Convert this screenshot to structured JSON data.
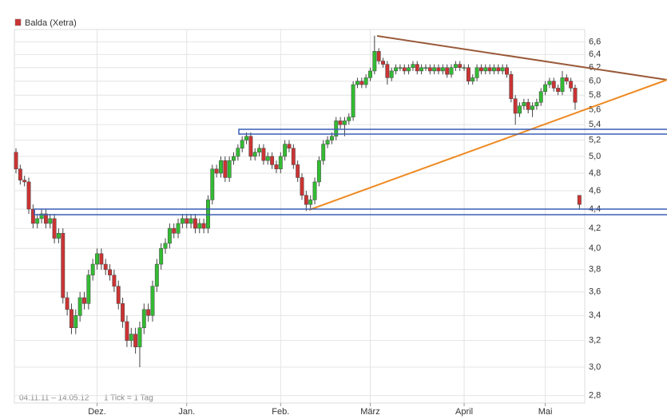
{
  "chart_data": {
    "type": "candlestick",
    "series": [
      {
        "name": "Balda (Xetra)",
        "color": "#cc3333",
        "up_color": "#33bb33",
        "down_color": "#cc3333",
        "open": [
          5.05,
          4.85,
          4.72,
          4.7,
          4.4,
          4.25,
          4.3,
          4.35,
          4.25,
          4.3,
          4.1,
          4.15,
          3.55,
          3.45,
          3.3,
          3.4,
          3.55,
          3.5,
          3.75,
          3.85,
          3.95,
          3.85,
          3.8,
          3.75,
          3.65,
          3.5,
          3.35,
          3.2,
          3.25,
          3.15,
          3.3,
          3.45,
          3.4,
          3.65,
          3.85,
          4.0,
          4.05,
          4.2,
          4.15,
          4.25,
          4.3,
          4.25,
          4.3,
          4.2,
          4.25,
          4.2,
          4.5,
          4.85,
          4.8,
          4.95,
          4.75,
          4.95,
          5.0,
          5.1,
          5.2,
          5.25,
          5.0,
          5.05,
          5.1,
          4.95,
          5.0,
          4.9,
          4.85,
          5.0,
          5.15,
          5.1,
          4.9,
          4.75,
          4.55,
          4.45,
          4.5,
          4.7,
          4.95,
          5.15,
          5.2,
          5.25,
          5.45,
          5.4,
          5.45,
          5.5,
          5.95,
          6.0,
          5.95,
          6.05,
          6.15,
          6.45,
          6.3,
          6.25,
          6.05,
          6.15,
          6.2,
          6.2,
          6.15,
          6.2,
          6.25,
          6.15,
          6.2,
          6.2,
          6.15,
          6.2,
          6.15,
          6.2,
          6.1,
          6.2,
          6.25,
          6.2,
          6.2,
          6.0,
          6.05,
          6.2,
          6.15,
          6.2,
          6.15,
          6.2,
          6.15,
          6.2,
          6.1,
          5.75,
          5.55,
          5.65,
          5.7,
          5.6,
          5.65,
          5.7,
          5.85,
          5.95,
          6.0,
          5.9,
          5.85,
          6.05,
          6.0,
          5.9,
          4.55
        ],
        "high": [
          5.1,
          4.9,
          4.77,
          4.75,
          4.45,
          4.35,
          4.4,
          4.4,
          4.35,
          4.35,
          4.2,
          4.2,
          3.6,
          3.5,
          3.45,
          3.6,
          3.6,
          3.8,
          3.9,
          4.0,
          4.0,
          3.9,
          3.85,
          3.8,
          3.7,
          3.55,
          3.4,
          3.3,
          3.3,
          3.35,
          3.5,
          3.5,
          3.7,
          3.9,
          4.05,
          4.1,
          4.25,
          4.25,
          4.3,
          4.35,
          4.35,
          4.35,
          4.35,
          4.3,
          4.3,
          4.55,
          4.9,
          4.9,
          5.0,
          5.0,
          5.0,
          5.05,
          5.15,
          5.25,
          5.3,
          5.3,
          5.1,
          5.15,
          5.15,
          5.05,
          5.05,
          4.95,
          5.05,
          5.2,
          5.2,
          5.15,
          4.95,
          4.8,
          4.6,
          4.55,
          4.75,
          5.0,
          5.2,
          5.25,
          5.3,
          5.5,
          5.5,
          5.5,
          5.55,
          6.0,
          6.05,
          6.05,
          6.1,
          6.2,
          6.7,
          6.5,
          6.35,
          6.3,
          6.2,
          6.25,
          6.25,
          6.25,
          6.25,
          6.3,
          6.3,
          6.25,
          6.25,
          6.25,
          6.25,
          6.25,
          6.25,
          6.25,
          6.25,
          6.3,
          6.3,
          6.25,
          6.25,
          6.1,
          6.25,
          6.25,
          6.25,
          6.25,
          6.25,
          6.25,
          6.25,
          6.25,
          6.15,
          5.8,
          5.7,
          5.75,
          5.75,
          5.7,
          5.75,
          5.9,
          6.0,
          6.05,
          6.05,
          5.95,
          6.15,
          6.1,
          6.05,
          5.95,
          4.55
        ],
        "low": [
          4.8,
          4.67,
          4.65,
          4.35,
          4.2,
          4.2,
          4.25,
          4.2,
          4.2,
          4.05,
          4.05,
          3.5,
          3.4,
          3.25,
          3.25,
          3.35,
          3.45,
          3.45,
          3.7,
          3.8,
          3.8,
          3.75,
          3.7,
          3.6,
          3.45,
          3.3,
          3.15,
          3.15,
          3.1,
          3.0,
          3.25,
          3.35,
          3.35,
          3.6,
          3.8,
          3.95,
          4.0,
          4.1,
          4.1,
          4.2,
          4.2,
          4.2,
          4.15,
          4.15,
          4.15,
          4.15,
          4.45,
          4.75,
          4.75,
          4.7,
          4.7,
          4.9,
          4.95,
          5.05,
          5.15,
          4.95,
          4.95,
          5.0,
          4.9,
          4.9,
          4.85,
          4.8,
          4.8,
          4.95,
          5.05,
          4.85,
          4.7,
          4.5,
          4.38,
          4.4,
          4.45,
          4.65,
          4.9,
          5.1,
          5.15,
          5.2,
          5.35,
          5.25,
          5.4,
          5.45,
          5.9,
          5.9,
          5.9,
          6.0,
          6.1,
          6.25,
          6.2,
          5.95,
          6.0,
          6.1,
          6.15,
          6.1,
          6.1,
          6.15,
          6.1,
          6.1,
          6.15,
          6.1,
          6.1,
          6.1,
          6.1,
          6.05,
          6.05,
          6.15,
          6.15,
          6.15,
          5.95,
          5.95,
          6.0,
          6.1,
          6.1,
          6.1,
          6.1,
          6.1,
          6.1,
          6.05,
          5.7,
          5.4,
          5.5,
          5.6,
          5.55,
          5.5,
          5.6,
          5.65,
          5.8,
          5.9,
          5.85,
          5.8,
          5.8,
          5.95,
          5.85,
          5.6,
          4.4
        ],
        "close": [
          4.85,
          4.72,
          4.7,
          4.4,
          4.25,
          4.3,
          4.35,
          4.25,
          4.3,
          4.1,
          4.15,
          3.55,
          3.45,
          3.3,
          3.4,
          3.55,
          3.5,
          3.75,
          3.85,
          3.95,
          3.85,
          3.8,
          3.75,
          3.65,
          3.5,
          3.35,
          3.2,
          3.25,
          3.15,
          3.3,
          3.45,
          3.4,
          3.65,
          3.85,
          4.0,
          4.05,
          4.2,
          4.15,
          4.25,
          4.3,
          4.25,
          4.3,
          4.2,
          4.25,
          4.2,
          4.5,
          4.85,
          4.8,
          4.95,
          4.75,
          4.95,
          5.0,
          5.1,
          5.2,
          5.25,
          5.0,
          5.05,
          5.1,
          4.95,
          5.0,
          4.9,
          4.85,
          5.0,
          5.15,
          5.1,
          4.9,
          4.75,
          4.55,
          4.45,
          4.5,
          4.7,
          4.95,
          5.15,
          5.2,
          5.25,
          5.45,
          5.4,
          5.45,
          5.5,
          5.95,
          6.0,
          5.95,
          6.05,
          6.15,
          6.45,
          6.3,
          6.25,
          6.05,
          6.15,
          6.2,
          6.2,
          6.15,
          6.2,
          6.25,
          6.15,
          6.2,
          6.2,
          6.15,
          6.2,
          6.15,
          6.2,
          6.1,
          6.2,
          6.25,
          6.2,
          6.2,
          6.0,
          6.05,
          6.2,
          6.15,
          6.2,
          6.15,
          6.2,
          6.15,
          6.2,
          6.1,
          5.75,
          5.55,
          5.65,
          5.7,
          5.6,
          5.65,
          5.7,
          5.85,
          5.95,
          6.0,
          5.9,
          5.85,
          6.05,
          6.0,
          5.9,
          5.7,
          4.45
        ]
      }
    ],
    "categories": [
      null,
      null,
      null,
      null,
      null,
      null,
      null,
      null,
      null,
      null,
      null,
      null,
      null,
      null,
      null,
      null,
      null,
      null,
      null,
      "Dez.",
      null,
      null,
      null,
      null,
      null,
      null,
      null,
      null,
      null,
      null,
      null,
      null,
      null,
      null,
      null,
      null,
      null,
      null,
      null,
      null,
      "Jan.",
      null,
      null,
      null,
      null,
      null,
      null,
      null,
      null,
      null,
      null,
      null,
      null,
      null,
      null,
      null,
      null,
      null,
      null,
      null,
      null,
      null,
      "Feb.",
      null,
      null,
      null,
      null,
      null,
      null,
      null,
      null,
      null,
      null,
      null,
      null,
      null,
      null,
      null,
      null,
      null,
      null,
      null,
      null,
      "März",
      null,
      null,
      null,
      null,
      null,
      null,
      null,
      null,
      null,
      null,
      null,
      null,
      null,
      null,
      null,
      null,
      null,
      null,
      null,
      null,
      null,
      "April",
      null,
      null,
      null,
      null,
      null,
      null,
      null,
      null,
      null,
      null,
      null,
      null,
      null,
      null,
      null,
      null,
      null,
      null,
      "Mai",
      null,
      null,
      null,
      null,
      null,
      null,
      null,
      null
    ],
    "ylim": [
      2.75,
      6.8
    ],
    "log_scale": true,
    "grid": true,
    "yticks": [
      {
        "value": 2.8,
        "label": "2,8"
      },
      {
        "value": 3.0,
        "label": "3,0"
      },
      {
        "value": 3.2,
        "label": "3,2"
      },
      {
        "value": 3.4,
        "label": "3,4"
      },
      {
        "value": 3.6,
        "label": "3,6"
      },
      {
        "value": 3.8,
        "label": "3,8"
      },
      {
        "value": 4.0,
        "label": "4,0"
      },
      {
        "value": 4.2,
        "label": "4,2"
      },
      {
        "value": 4.4,
        "label": "4,4"
      },
      {
        "value": 4.6,
        "label": "4,6"
      },
      {
        "value": 4.8,
        "label": "4,8"
      },
      {
        "value": 5.0,
        "label": "5,0"
      },
      {
        "value": 5.2,
        "label": "5,2"
      },
      {
        "value": 5.4,
        "label": "5,4"
      },
      {
        "value": 5.6,
        "label": "5,6"
      },
      {
        "value": 5.8,
        "label": "5,8"
      },
      {
        "value": 6.0,
        "label": "6,0"
      },
      {
        "value": 6.2,
        "label": "6,2"
      },
      {
        "value": 6.4,
        "label": "6,4"
      },
      {
        "value": 6.6,
        "label": "6,6"
      }
    ],
    "date_range": "04.11.11 – 14.05.12",
    "footnote": "1 Tick = 1 Tag"
  }
}
